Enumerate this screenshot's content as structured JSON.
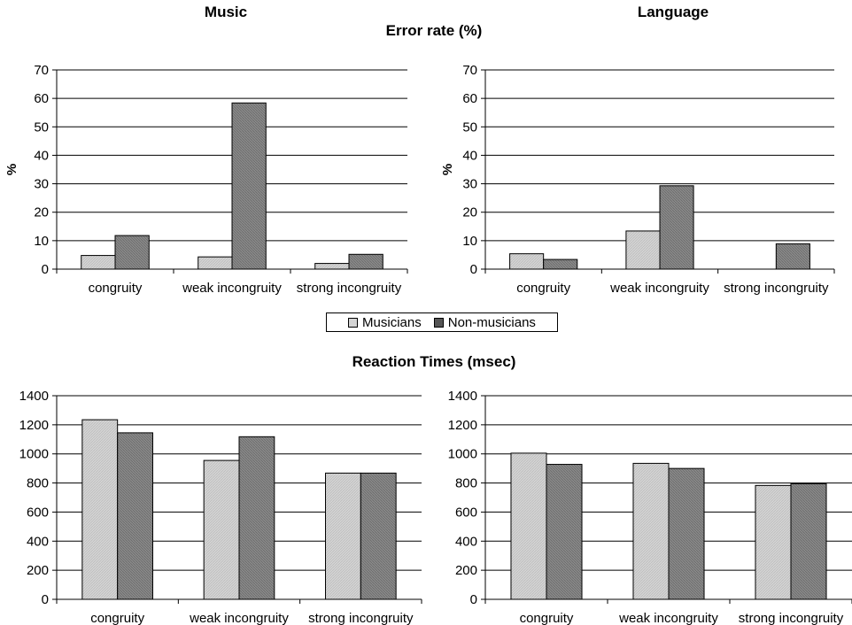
{
  "headings": {
    "music": "Music",
    "language": "Language",
    "error_rate": "Error rate (%)",
    "reaction_times": "Reaction Times (msec)"
  },
  "legend": {
    "musicians": "Musicians",
    "non_musicians": "Non-musicians"
  },
  "colors": {
    "musicians": "#d4d4d4",
    "non_musicians": "#8a8a8a",
    "grid": "#000000"
  },
  "chart_data": [
    {
      "type": "bar",
      "title": "Music",
      "subtitle": "Error rate (%)",
      "ylabel": "%",
      "ylim": [
        0,
        70
      ],
      "ytick_step": 10,
      "grid": true,
      "categories": [
        "congruity",
        "weak incongruity",
        "strong incongruity"
      ],
      "series": [
        {
          "name": "Musicians",
          "values": [
            4.8,
            4.3,
            2.0
          ]
        },
        {
          "name": "Non-musicians",
          "values": [
            11.8,
            58.4,
            5.2
          ]
        }
      ]
    },
    {
      "type": "bar",
      "title": "Language",
      "subtitle": "Error rate (%)",
      "ylabel": "%",
      "ylim": [
        0,
        70
      ],
      "ytick_step": 10,
      "grid": true,
      "categories": [
        "congruity",
        "weak incongruity",
        "strong incongruity"
      ],
      "series": [
        {
          "name": "Musicians",
          "values": [
            5.4,
            13.4,
            0
          ]
        },
        {
          "name": "Non-musicians",
          "values": [
            3.4,
            29.3,
            8.9
          ]
        }
      ]
    },
    {
      "type": "bar",
      "title": "Reaction Times (msec)",
      "ylabel": "",
      "ylim": [
        0,
        1400
      ],
      "ytick_step": 200,
      "grid": true,
      "categories": [
        "congruity",
        "weak incongruity",
        "strong incongruity"
      ],
      "series": [
        {
          "name": "Musicians",
          "values": [
            1235,
            955,
            868
          ]
        },
        {
          "name": "Non-musicians",
          "values": [
            1145,
            1118,
            868
          ]
        }
      ]
    },
    {
      "type": "bar",
      "title": "Reaction Times (msec)",
      "ylabel": "",
      "ylim": [
        0,
        1400
      ],
      "ytick_step": 200,
      "grid": true,
      "categories": [
        "congruity",
        "weak incongruity",
        "strong incongruity"
      ],
      "series": [
        {
          "name": "Musicians",
          "values": [
            1005,
            935,
            783
          ]
        },
        {
          "name": "Non-musicians",
          "values": [
            928,
            900,
            795
          ]
        }
      ]
    }
  ]
}
